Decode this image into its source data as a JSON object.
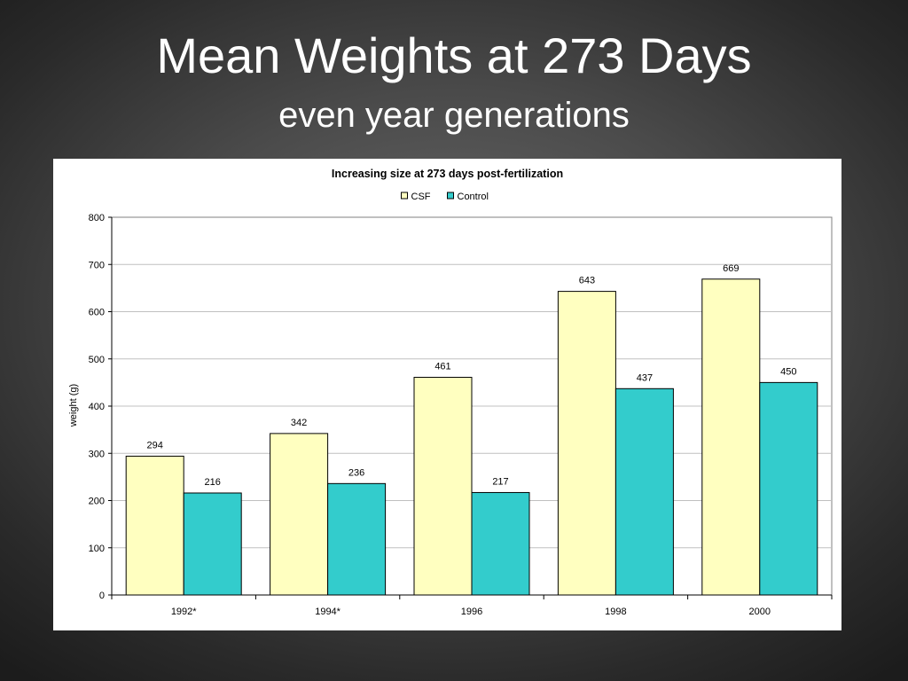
{
  "slide": {
    "title": "Mean Weights at 273 Days",
    "subtitle": "even year generations"
  },
  "chart_data": {
    "type": "bar",
    "title": "Increasing size at 273 days post-fertilization",
    "xlabel": "",
    "ylabel": "weight (g)",
    "ylim": [
      0,
      800
    ],
    "yticks": [
      0,
      100,
      200,
      300,
      400,
      500,
      600,
      700,
      800
    ],
    "grid": true,
    "legend_position": "top-center",
    "categories": [
      "1992*",
      "1994*",
      "1996",
      "1998",
      "2000"
    ],
    "series": [
      {
        "name": "CSF",
        "color": "#ffffc0",
        "values": [
          294,
          342,
          461,
          643,
          669
        ]
      },
      {
        "name": "Control",
        "color": "#33cccc",
        "values": [
          216,
          236,
          217,
          437,
          450
        ]
      }
    ]
  }
}
